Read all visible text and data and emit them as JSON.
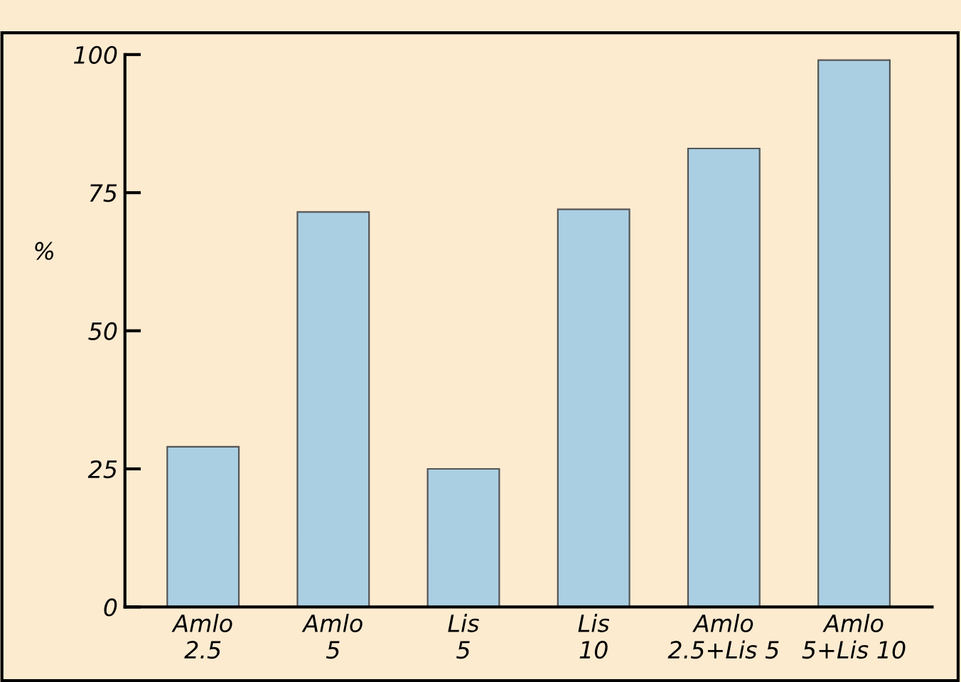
{
  "chart_data": {
    "type": "bar",
    "ylabel": "%",
    "categories": [
      "Amlo\n2.5",
      "Amlo\n5",
      "Lis\n5",
      "Lis\n10",
      "Amlo\n2.5+Lis 5",
      "Amlo\n5+Lis 10"
    ],
    "values": [
      29,
      71.5,
      25,
      72,
      83,
      99
    ],
    "color": "#aacfe3",
    "ylim": [
      0,
      100
    ],
    "yticks": [
      0,
      25,
      50,
      75,
      100
    ],
    "grid": false
  }
}
